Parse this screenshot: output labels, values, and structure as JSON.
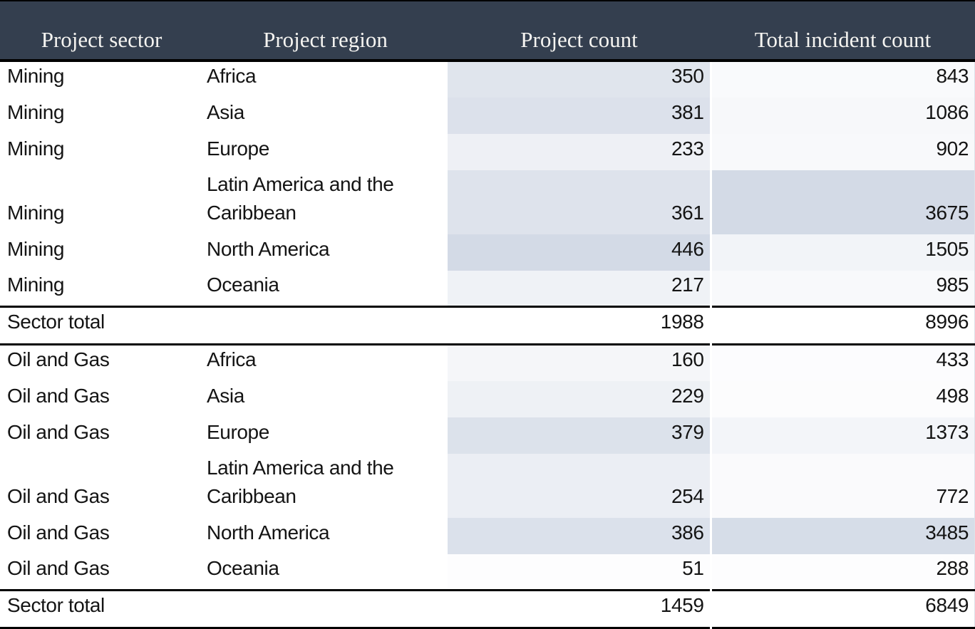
{
  "chart_data": {
    "type": "table",
    "columns": [
      "Project sector",
      "Project region",
      "Project count",
      "Total incident count"
    ],
    "sections": [
      {
        "rows": [
          {
            "sector": "Mining",
            "region": "Africa",
            "project_count": 350,
            "incident_count": 843
          },
          {
            "sector": "Mining",
            "region": "Asia",
            "project_count": 381,
            "incident_count": 1086
          },
          {
            "sector": "Mining",
            "region": "Europe",
            "project_count": 233,
            "incident_count": 902
          },
          {
            "sector": "Mining",
            "region": "Latin America and the Caribbean",
            "project_count": 361,
            "incident_count": 3675
          },
          {
            "sector": "Mining",
            "region": "North America",
            "project_count": 446,
            "incident_count": 1505
          },
          {
            "sector": "Mining",
            "region": "Oceania",
            "project_count": 217,
            "incident_count": 985
          }
        ],
        "total": {
          "label": "Sector total",
          "project_count": 1988,
          "incident_count": 8996
        }
      },
      {
        "rows": [
          {
            "sector": "Oil and Gas",
            "region": "Africa",
            "project_count": 160,
            "incident_count": 433
          },
          {
            "sector": "Oil and Gas",
            "region": "Asia",
            "project_count": 229,
            "incident_count": 498
          },
          {
            "sector": "Oil and Gas",
            "region": "Europe",
            "project_count": 379,
            "incident_count": 1373
          },
          {
            "sector": "Oil and Gas",
            "region": "Latin America and the Caribbean",
            "project_count": 254,
            "incident_count": 772
          },
          {
            "sector": "Oil and Gas",
            "region": "North America",
            "project_count": 386,
            "incident_count": 3485
          },
          {
            "sector": "Oil and Gas",
            "region": "Oceania",
            "project_count": 51,
            "incident_count": 288
          }
        ],
        "total": {
          "label": "Sector total",
          "project_count": 1459,
          "incident_count": 6849
        }
      }
    ],
    "layout": {
      "header_position": "top",
      "value_shading": "per-column min-max gradient on count columns",
      "numeric_alignment": "right",
      "text_alignment": "left"
    }
  },
  "colors": {
    "header_bg": "#343f4f",
    "header_text": "#f5f4f1",
    "body_text": "#141414",
    "rule": "#000000",
    "shade_min": "#fdfdfe",
    "shade_max": "#d3dae6"
  },
  "shade_gamma": 1.3
}
